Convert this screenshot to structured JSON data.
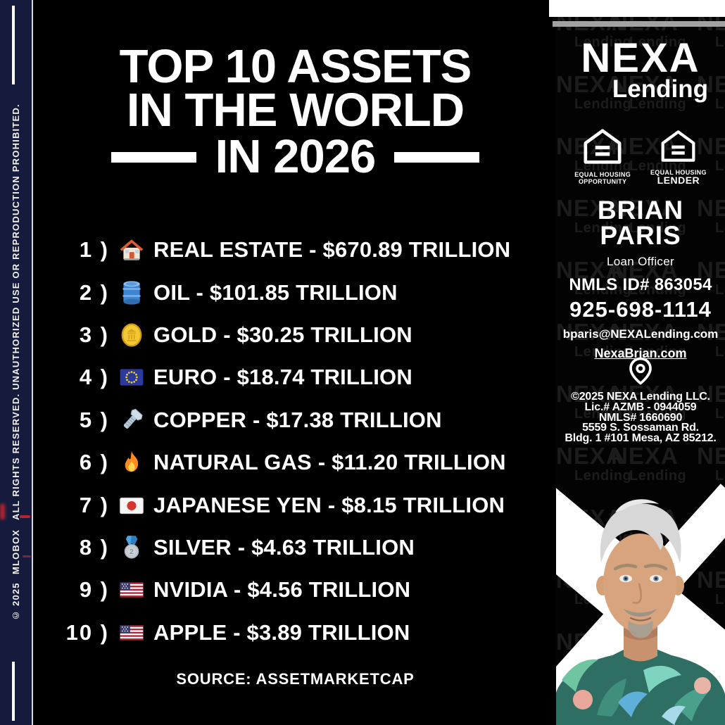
{
  "colors": {
    "background": "#000000",
    "text": "#ffffff",
    "left_strip_bg": "#151b3c",
    "accent_red": "#d5262b",
    "top_bar_white": "#ffffff",
    "top_bar_gray": "#a2a2a2",
    "watermark_gray": "#1c1c1c"
  },
  "left_strip": {
    "copyright": "© 2025",
    "brand": "MLOBOX",
    "notice": "ALL RIGHTS RESERVED. UNAUTHORIZED USE OR REPRODUCTION PROHIBITED."
  },
  "main": {
    "title_line1": "TOP 10 ASSETS",
    "title_line2": "IN THE WORLD",
    "title_line3": "IN 2026",
    "separator": "-",
    "items": [
      {
        "rank": "1 )",
        "icon": "house-icon",
        "name": "REAL ESTATE",
        "value": "$670.89 TRILLION"
      },
      {
        "rank": "2 )",
        "icon": "oil-drum-icon",
        "name": "OIL",
        "value": "$101.85 TRILLION"
      },
      {
        "rank": "3 )",
        "icon": "gold-coin-icon",
        "name": "GOLD",
        "value": "$30.25 TRILLION"
      },
      {
        "rank": "4 )",
        "icon": "eu-flag-icon",
        "name": "EURO",
        "value": "$18.74 TRILLION"
      },
      {
        "rank": "5 )",
        "icon": "nut-and-bolt-icon",
        "name": "COPPER",
        "value": "$17.38 TRILLION"
      },
      {
        "rank": "6 )",
        "icon": "fire-icon",
        "name": "NATURAL GAS",
        "value": "$11.20 TRILLION"
      },
      {
        "rank": "7 )",
        "icon": "japan-flag-icon",
        "name": "JAPANESE YEN",
        "value": "$8.15 TRILLION"
      },
      {
        "rank": "8 )",
        "icon": "silver-medal-icon",
        "name": "SILVER",
        "value": "$4.63 TRILLION"
      },
      {
        "rank": "9 )",
        "icon": "us-flag-icon",
        "name": "NVIDIA",
        "value": "$4.56 TRILLION"
      },
      {
        "rank": "10 )",
        "icon": "us-flag-icon",
        "name": "APPLE",
        "value": "$3.89 TRILLION"
      }
    ],
    "source": "SOURCE: ASSETMARKETCAP"
  },
  "sidebar": {
    "brand_name": "NEXA",
    "brand_sub": "Lending",
    "watermark_line1": "NEXA",
    "watermark_line2": "Lending",
    "equal_housing_opportunity": {
      "line1": "EQUAL HOUSING",
      "line2": "OPPORTUNITY"
    },
    "equal_housing_lender": {
      "line1": "EQUAL HOUSING",
      "line2": "LENDER"
    },
    "agent": {
      "first_name": "BRIAN",
      "last_name": "PARIS",
      "role": "Loan Officer",
      "nmls": "NMLS ID# 863054",
      "phone": "925-698-1114",
      "email": "bparis@NEXALending.com",
      "website": "NexaBrian.com"
    },
    "company": {
      "copyright": "©2025 NEXA Lending LLC.",
      "license": "Lic.# AZMB - 0944059",
      "nmls": "NMLS# 1660690",
      "address_line1": "5559 S. Sossaman Rd.",
      "address_line2": "Bldg. 1 #101 Mesa, AZ 85212."
    }
  }
}
